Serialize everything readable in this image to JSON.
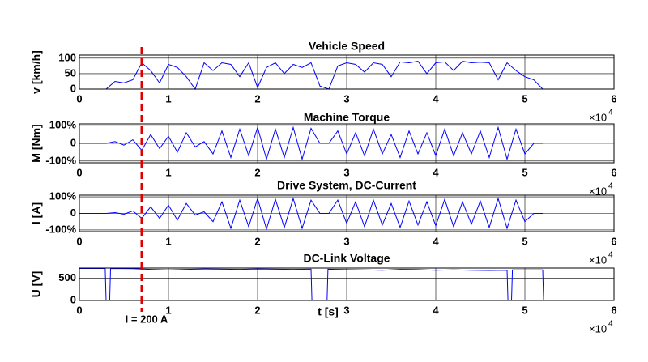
{
  "chart_data": [
    {
      "type": "line",
      "title": "Vehicle Speed",
      "ylabel": "v [km/h]",
      "x": [
        0,
        1000,
        2000,
        3000,
        4000,
        5000,
        6000,
        7000,
        8000,
        9000,
        10000,
        11000,
        12000,
        13000,
        14000,
        15000,
        16000,
        17000,
        18000,
        19000,
        20000,
        21000,
        22000,
        23000,
        24000,
        25000,
        26000,
        27000,
        28000,
        29000,
        30000,
        31000,
        32000,
        33000,
        34000,
        35000,
        36000,
        37000,
        38000,
        39000,
        40000,
        41000,
        42000,
        43000,
        44000,
        45000,
        46000,
        47000,
        48000,
        49000,
        50000,
        51000,
        52000
      ],
      "values": [
        0,
        0,
        0,
        0,
        25,
        20,
        30,
        85,
        60,
        20,
        80,
        70,
        40,
        0,
        85,
        60,
        85,
        80,
        40,
        85,
        5,
        70,
        85,
        50,
        80,
        70,
        85,
        10,
        0,
        75,
        85,
        80,
        55,
        85,
        80,
        40,
        88,
        85,
        90,
        50,
        85,
        88,
        60,
        90,
        85,
        87,
        85,
        30,
        85,
        60,
        40,
        30,
        0
      ],
      "color": "#0000ff",
      "xlim": [
        0,
        60000
      ],
      "xticks": [
        0,
        {
          "value": 10000,
          "label": "1"
        },
        {
          "value": 20000,
          "label": "2"
        },
        {
          "value": 30000,
          "label": "3"
        },
        {
          "value": 40000,
          "label": "4"
        },
        {
          "value": 50000,
          "label": "5"
        },
        {
          "value": 60000,
          "label": "6"
        }
      ],
      "x_multiplier": "×10",
      "x_exponent": "4",
      "ylim": [
        0,
        110
      ],
      "yticks": [
        0,
        50,
        100
      ],
      "grid": true
    },
    {
      "type": "line",
      "title": "Machine Torque",
      "ylabel": "M [Nm]",
      "x": [
        0,
        1000,
        2000,
        3000,
        4000,
        5000,
        6000,
        7000,
        8000,
        9000,
        10000,
        11000,
        12000,
        13000,
        14000,
        15000,
        16000,
        17000,
        18000,
        19000,
        20000,
        21000,
        22000,
        23000,
        24000,
        25000,
        26000,
        27000,
        28000,
        29000,
        30000,
        31000,
        32000,
        33000,
        34000,
        35000,
        36000,
        37000,
        38000,
        39000,
        40000,
        41000,
        42000,
        43000,
        44000,
        45000,
        46000,
        47000,
        48000,
        49000,
        50000,
        51000,
        52000
      ],
      "values": [
        0,
        0,
        0,
        0,
        10,
        -10,
        20,
        -40,
        50,
        -30,
        40,
        -50,
        60,
        -20,
        10,
        -60,
        70,
        -80,
        80,
        -70,
        90,
        -90,
        80,
        -80,
        90,
        -90,
        85,
        0,
        0,
        70,
        -60,
        60,
        -70,
        80,
        -60,
        50,
        -80,
        70,
        -60,
        60,
        -70,
        80,
        -70,
        60,
        -60,
        70,
        -80,
        90,
        -90,
        80,
        -60,
        0,
        0
      ],
      "color": "#0000ff",
      "xlim": [
        0,
        60000
      ],
      "xticks": [
        0,
        {
          "value": 10000,
          "label": "1"
        },
        {
          "value": 20000,
          "label": "2"
        },
        {
          "value": 30000,
          "label": "3"
        },
        {
          "value": 40000,
          "label": "4"
        },
        {
          "value": 50000,
          "label": "5"
        },
        {
          "value": 60000,
          "label": "6"
        }
      ],
      "x_multiplier": "×10",
      "x_exponent": "4",
      "ylim": [
        -110,
        110
      ],
      "yticks": [
        {
          "value": -100,
          "label": "-100%"
        },
        0,
        {
          "value": 100,
          "label": "100%"
        }
      ],
      "grid": true
    },
    {
      "type": "line",
      "title": "Drive System, DC-Current",
      "ylabel": "I [A]",
      "x": [
        0,
        1000,
        2000,
        3000,
        4000,
        5000,
        6000,
        7000,
        8000,
        9000,
        10000,
        11000,
        12000,
        13000,
        14000,
        15000,
        16000,
        17000,
        18000,
        19000,
        20000,
        21000,
        22000,
        23000,
        24000,
        25000,
        26000,
        27000,
        28000,
        29000,
        30000,
        31000,
        32000,
        33000,
        34000,
        35000,
        36000,
        37000,
        38000,
        39000,
        40000,
        41000,
        42000,
        43000,
        44000,
        45000,
        46000,
        47000,
        48000,
        49000,
        50000,
        51000,
        52000
      ],
      "values": [
        0,
        0,
        0,
        0,
        5,
        -5,
        15,
        -30,
        40,
        -30,
        50,
        -40,
        60,
        -10,
        10,
        -50,
        70,
        -90,
        80,
        -80,
        90,
        -95,
        85,
        -85,
        90,
        -90,
        80,
        0,
        0,
        80,
        -60,
        70,
        -80,
        80,
        -70,
        60,
        -85,
        75,
        -70,
        70,
        -75,
        85,
        -80,
        70,
        -65,
        75,
        -85,
        90,
        -90,
        80,
        -50,
        0,
        0
      ],
      "color": "#0000ff",
      "xlim": [
        0,
        60000
      ],
      "xticks": [
        0,
        {
          "value": 10000,
          "label": "1"
        },
        {
          "value": 20000,
          "label": "2"
        },
        {
          "value": 30000,
          "label": "3"
        },
        {
          "value": 40000,
          "label": "4"
        },
        {
          "value": 50000,
          "label": "5"
        },
        {
          "value": 60000,
          "label": "6"
        }
      ],
      "x_multiplier": "×10",
      "x_exponent": "4",
      "ylim": [
        -110,
        110
      ],
      "yticks": [
        {
          "value": -100,
          "label": "-100%"
        },
        0,
        {
          "value": 100,
          "label": "100%"
        }
      ],
      "grid": true
    },
    {
      "type": "line",
      "title": "DC-Link Voltage",
      "ylabel": "U [V]",
      "xlabel": "t [s]",
      "x": [
        0,
        1000,
        2000,
        2900,
        3000,
        3400,
        3500,
        6000,
        8000,
        10000,
        12000,
        14000,
        16000,
        18000,
        20000,
        22000,
        24000,
        26000,
        26100,
        27800,
        27900,
        30000,
        32000,
        34000,
        36000,
        38000,
        40000,
        42000,
        44000,
        46000,
        48000,
        48100,
        48500,
        48600,
        50000,
        52000,
        52100,
        55000
      ],
      "values": [
        720,
        720,
        720,
        720,
        0,
        0,
        720,
        715,
        700,
        690,
        700,
        710,
        705,
        700,
        710,
        705,
        700,
        705,
        0,
        0,
        705,
        695,
        690,
        680,
        700,
        695,
        680,
        690,
        680,
        675,
        680,
        0,
        0,
        690,
        690,
        690,
        0,
        0
      ],
      "color": "#0000ff",
      "xlim": [
        0,
        60000
      ],
      "xticks": [
        0,
        {
          "value": 10000,
          "label": "1"
        },
        {
          "value": 20000,
          "label": "2"
        },
        {
          "value": 30000,
          "label": "3"
        },
        {
          "value": 40000,
          "label": "4"
        },
        {
          "value": 50000,
          "label": "5"
        },
        {
          "value": 60000,
          "label": "6"
        }
      ],
      "x_multiplier": "×10",
      "x_exponent": "4",
      "ylim": [
        0,
        730
      ],
      "yticks": [
        0,
        500
      ],
      "grid": true
    }
  ],
  "marker": {
    "x": 7000,
    "label": "I = 200 A",
    "color": "#e00000"
  }
}
